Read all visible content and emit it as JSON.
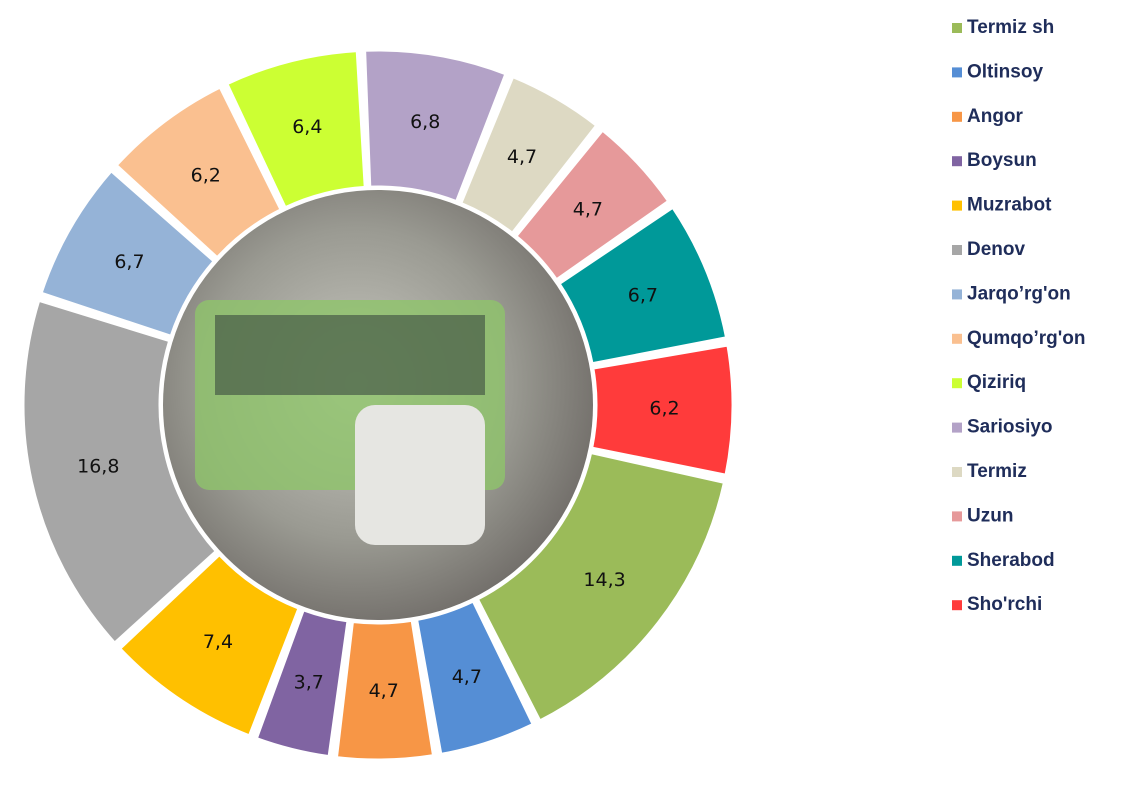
{
  "chart_data": {
    "type": "donut",
    "categories": [
      "Termiz sh",
      "Oltinsoy",
      "Angor",
      "Boysun",
      "Muzrabot",
      "Denov",
      "Jarqo’rg'on",
      "Qumqo’rg'on",
      "Qiziriq",
      "Sariosiyo",
      "Termiz",
      "Uzun",
      "Sherabod",
      "Sho'rchi"
    ],
    "values": [
      14.3,
      4.7,
      4.7,
      3.7,
      7.4,
      16.8,
      6.7,
      6.2,
      6.4,
      6.8,
      4.7,
      4.7,
      6.7,
      6.2
    ],
    "value_labels": [
      "14,3",
      "4,7",
      "4,7",
      "3,7",
      "7,4",
      "16,8",
      "6,7",
      "6,2",
      "6,4",
      "6,8",
      "4,7",
      "4,7",
      "6,7",
      "6,2"
    ],
    "colors": [
      "#9bbb59",
      "#558ed5",
      "#f79646",
      "#8064a2",
      "#ffc000",
      "#a6a6a6",
      "#95b3d7",
      "#fac090",
      "#ccff33",
      "#b3a2c7",
      "#ddd9c3",
      "#e6999a",
      "#009999",
      "#ff3b3b"
    ],
    "legend": "right"
  }
}
